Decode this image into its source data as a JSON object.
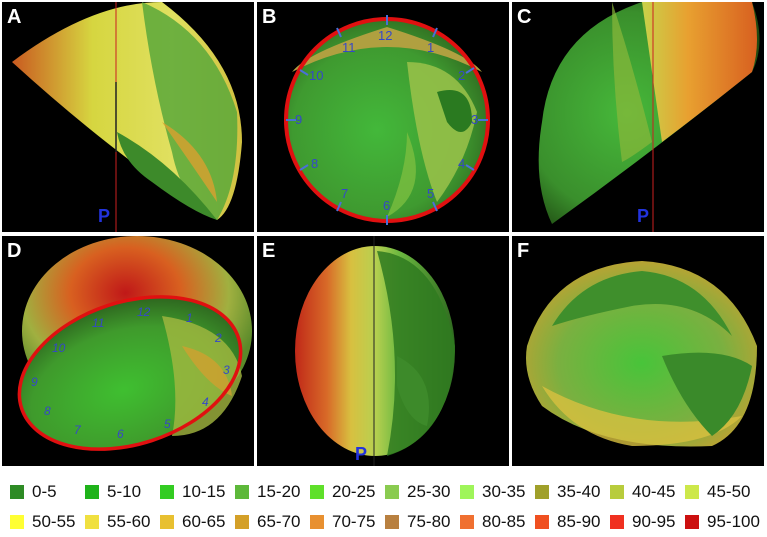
{
  "panels": [
    {
      "label": "A",
      "marker": "P"
    },
    {
      "label": "B",
      "clock": [
        "12",
        "1",
        "2",
        "3",
        "4",
        "5",
        "6",
        "7",
        "8",
        "9",
        "10",
        "11"
      ]
    },
    {
      "label": "C",
      "marker": "P"
    },
    {
      "label": "D",
      "clock": [
        "12",
        "1",
        "2",
        "3",
        "4",
        "5",
        "6",
        "7",
        "8",
        "9",
        "10",
        "11"
      ]
    },
    {
      "label": "E",
      "marker": "P"
    },
    {
      "label": "F"
    }
  ],
  "legend": [
    {
      "label": "0-5",
      "color": "#2e8b25"
    },
    {
      "label": "5-10",
      "color": "#1fb31a"
    },
    {
      "label": "10-15",
      "color": "#33cc22"
    },
    {
      "label": "15-20",
      "color": "#5db83a"
    },
    {
      "label": "20-25",
      "color": "#5fe02a"
    },
    {
      "label": "25-30",
      "color": "#8acb50"
    },
    {
      "label": "30-35",
      "color": "#9ff55a"
    },
    {
      "label": "35-40",
      "color": "#a0a02a"
    },
    {
      "label": "40-45",
      "color": "#b8cc3c"
    },
    {
      "label": "45-50",
      "color": "#cde84a"
    },
    {
      "label": "50-55",
      "color": "#ffff33"
    },
    {
      "label": "55-60",
      "color": "#f0e040"
    },
    {
      "label": "60-65",
      "color": "#e8c030"
    },
    {
      "label": "65-70",
      "color": "#d4a028"
    },
    {
      "label": "70-75",
      "color": "#e89030"
    },
    {
      "label": "75-80",
      "color": "#b88040"
    },
    {
      "label": "80-85",
      "color": "#f07030"
    },
    {
      "label": "85-90",
      "color": "#f05020"
    },
    {
      "label": "90-95",
      "color": "#f03020"
    },
    {
      "label": "95-100",
      "color": "#cc1010"
    }
  ]
}
